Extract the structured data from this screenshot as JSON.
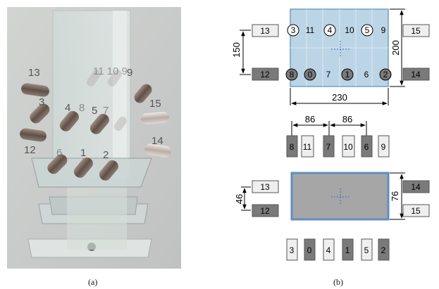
{
  "captions": {
    "a": "(a)",
    "b": "(b)"
  },
  "render_labels": {
    "left_upper": "13",
    "left_mid": "3",
    "left_lower": "12",
    "row_top": "11 10 9",
    "row_mid_a": "4",
    "row_mid_b": "8",
    "row_mid_c": "5",
    "row_mid_d": "7",
    "right_upper": "15",
    "right_lower": "14",
    "bottom_row": [
      "6",
      "1",
      "2"
    ]
  },
  "top_view": {
    "left_boxes": [
      "13",
      "12"
    ],
    "right_boxes": [
      "15",
      "14"
    ],
    "upper_row": [
      "3",
      "11",
      "4",
      "10",
      "5",
      "9"
    ],
    "lower_row": [
      "8",
      "0",
      "7",
      "1",
      "6",
      "2"
    ],
    "dims": {
      "height_left": "150",
      "height_right": "200",
      "width": "230"
    }
  },
  "strip1": {
    "boxes": [
      "8",
      "11",
      "7",
      "10",
      "6",
      "9"
    ],
    "dims": [
      "86",
      "86"
    ]
  },
  "front_view": {
    "left_boxes": [
      "13",
      "12"
    ],
    "right_boxes": [
      "14",
      "15"
    ],
    "dims": {
      "left": "46",
      "right": "76"
    }
  },
  "strip2": {
    "boxes": [
      "3",
      "0",
      "4",
      "1",
      "5",
      "2"
    ]
  },
  "colors": {
    "light_box": "#efefef",
    "dark_box": "#7a7a7a",
    "plate": "#bcd5e6",
    "plate_border": "#6f9fc6",
    "front_fill": "#a6a6a6",
    "front_border": "#5f8fc0"
  }
}
